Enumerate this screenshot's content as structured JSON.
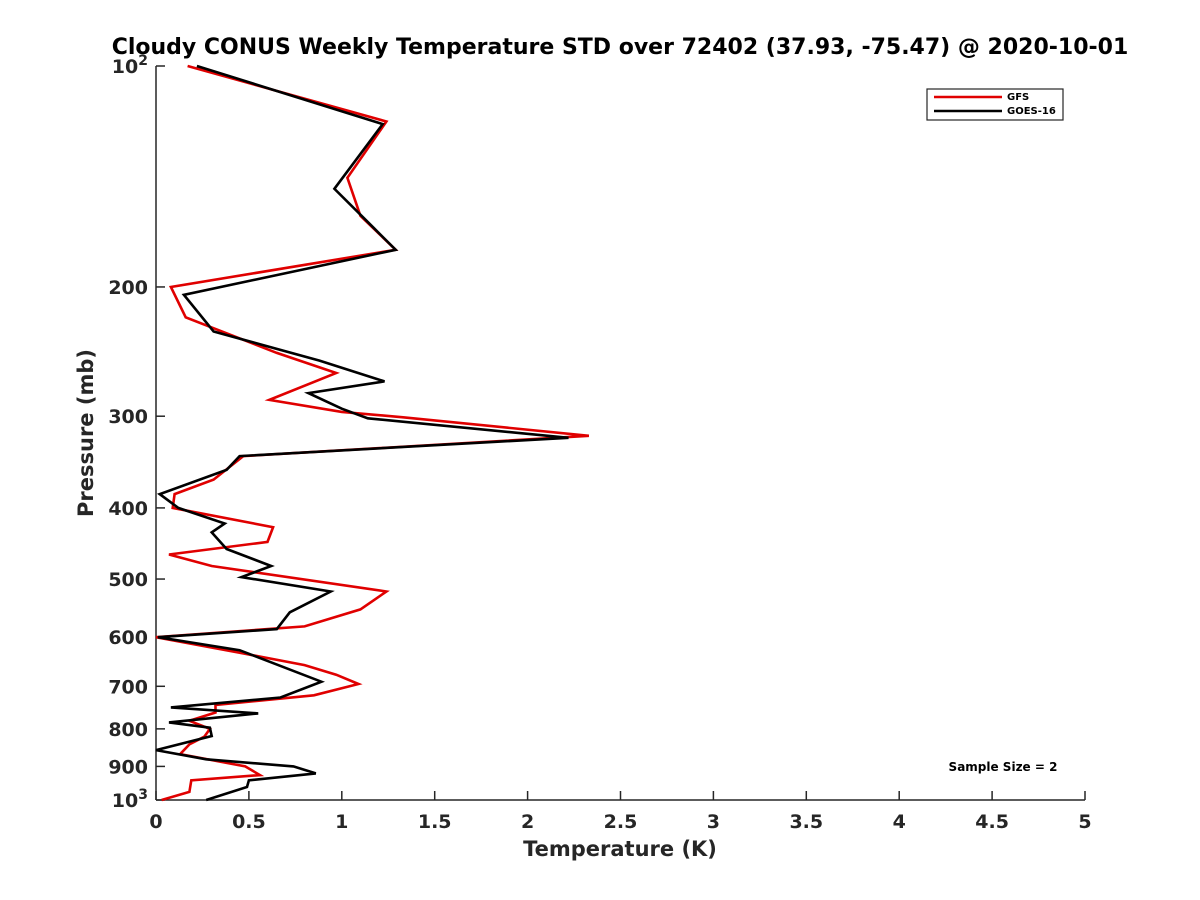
{
  "chart_data": {
    "type": "line",
    "title": "Cloudy CONUS Weekly Temperature STD over 72402 (37.93, -75.47) @ 2020-10-01",
    "xlabel": "Temperature (K)",
    "ylabel": "Pressure (mb)",
    "xlim": [
      0,
      5
    ],
    "ylim": [
      100,
      1000
    ],
    "y_scale": "log",
    "y_reversed": true,
    "x_ticks": [
      "0",
      "0.5",
      "1",
      "1.5",
      "2",
      "2.5",
      "3",
      "3.5",
      "4",
      "4.5",
      "5"
    ],
    "y_ticks": [
      {
        "value": 100,
        "base": "10",
        "exp": "2"
      },
      {
        "value": 200,
        "label": "200"
      },
      {
        "value": 300,
        "label": "300"
      },
      {
        "value": 400,
        "label": "400"
      },
      {
        "value": 500,
        "label": "500"
      },
      {
        "value": 600,
        "label": "600"
      },
      {
        "value": 700,
        "label": "700"
      },
      {
        "value": 800,
        "label": "800"
      },
      {
        "value": 900,
        "label": "900"
      },
      {
        "value": 1000,
        "base": "10",
        "exp": "3"
      }
    ],
    "grid": false,
    "legend_position": "top-right",
    "annotation": "Sample Size = 2",
    "series": [
      {
        "name": "GFS",
        "color": "#e00000",
        "points": [
          [
            0.17,
            100
          ],
          [
            1.24,
            119
          ],
          [
            1.03,
            142
          ],
          [
            1.1,
            160
          ],
          [
            1.29,
            178
          ],
          [
            0.08,
            200
          ],
          [
            0.16,
            220
          ],
          [
            0.65,
            246
          ],
          [
            0.97,
            262
          ],
          [
            0.61,
            285
          ],
          [
            1.0,
            296
          ],
          [
            1.33,
            301
          ],
          [
            2.33,
            319
          ],
          [
            0.47,
            340
          ],
          [
            0.31,
            366
          ],
          [
            0.1,
            383
          ],
          [
            0.09,
            400
          ],
          [
            0.63,
            425
          ],
          [
            0.6,
            445
          ],
          [
            0.07,
            463
          ],
          [
            0.3,
            480
          ],
          [
            1.24,
            520
          ],
          [
            1.1,
            550
          ],
          [
            0.8,
            580
          ],
          [
            0.0,
            600
          ],
          [
            0.45,
            630
          ],
          [
            0.8,
            655
          ],
          [
            0.97,
            675
          ],
          [
            1.09,
            695
          ],
          [
            0.85,
            720
          ],
          [
            0.32,
            742
          ],
          [
            0.32,
            760
          ],
          [
            0.18,
            780
          ],
          [
            0.29,
            800
          ],
          [
            0.26,
            820
          ],
          [
            0.18,
            840
          ],
          [
            0.13,
            866
          ],
          [
            0.48,
            900
          ],
          [
            0.56,
            925
          ],
          [
            0.19,
            940
          ],
          [
            0.18,
            975
          ],
          [
            0.03,
            1000
          ]
        ]
      },
      {
        "name": "GOES-16",
        "color": "#000000",
        "points": [
          [
            0.22,
            100
          ],
          [
            1.22,
            120
          ],
          [
            0.96,
            147
          ],
          [
            1.17,
            166
          ],
          [
            1.29,
            178
          ],
          [
            0.15,
            205
          ],
          [
            0.31,
            230
          ],
          [
            0.88,
            252
          ],
          [
            1.23,
            269
          ],
          [
            0.82,
            279
          ],
          [
            1.0,
            293
          ],
          [
            1.14,
            302
          ],
          [
            2.22,
            321
          ],
          [
            0.45,
            340
          ],
          [
            0.38,
            355
          ],
          [
            0.02,
            383
          ],
          [
            0.12,
            400
          ],
          [
            0.37,
            420
          ],
          [
            0.3,
            432
          ],
          [
            0.38,
            455
          ],
          [
            0.62,
            480
          ],
          [
            0.46,
            497
          ],
          [
            0.94,
            520
          ],
          [
            0.72,
            555
          ],
          [
            0.65,
            585
          ],
          [
            0.01,
            600
          ],
          [
            0.45,
            625
          ],
          [
            0.89,
            690
          ],
          [
            0.67,
            725
          ],
          [
            0.08,
            748
          ],
          [
            0.55,
            762
          ],
          [
            0.07,
            784
          ],
          [
            0.29,
            797
          ],
          [
            0.3,
            818
          ],
          [
            0.0,
            855
          ],
          [
            0.27,
            880
          ],
          [
            0.74,
            900
          ],
          [
            0.86,
            920
          ],
          [
            0.5,
            940
          ],
          [
            0.49,
            960
          ],
          [
            0.27,
            1000
          ]
        ]
      }
    ]
  }
}
